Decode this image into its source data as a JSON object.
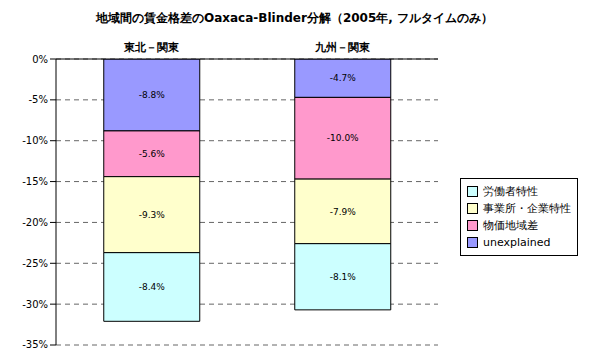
{
  "chart_data": {
    "type": "bar",
    "title": "地域間の賃金格差のOaxaca-Blinder分解（2005年, フルタイムのみ）",
    "categories": [
      "東北－関東",
      "九州－関東"
    ],
    "series": [
      {
        "name": "労働者特性",
        "color": "#ccffff",
        "values": [
          -8.4,
          -8.1
        ],
        "value_labels": [
          "-8.4%",
          "-8.1%"
        ]
      },
      {
        "name": "事業所・企業特性",
        "color": "#ffffcc",
        "values": [
          -9.3,
          -7.9
        ],
        "value_labels": [
          "-9.3%",
          "-7.9%"
        ]
      },
      {
        "name": "物価地域差",
        "color": "#ff99cc",
        "values": [
          -5.6,
          -10.0
        ],
        "value_labels": [
          "-5.6%",
          "-10.0%"
        ]
      },
      {
        "name": "unexplained",
        "color": "#9999ff",
        "values": [
          -8.8,
          -4.7
        ],
        "value_labels": [
          "-8.8%",
          "-4.7%"
        ]
      }
    ],
    "ylim": [
      -35,
      0
    ],
    "yticks": [
      {
        "value": 0,
        "label": "0%"
      },
      {
        "value": -5,
        "label": "-5%"
      },
      {
        "value": -10,
        "label": "-10%"
      },
      {
        "value": -15,
        "label": "-15%"
      },
      {
        "value": -20,
        "label": "-20%"
      },
      {
        "value": -25,
        "label": "-25%"
      },
      {
        "value": -30,
        "label": "-30%"
      },
      {
        "value": -35,
        "label": "-35%"
      }
    ],
    "grid": true,
    "stacked": true,
    "data_labels": true,
    "legend": "right"
  }
}
